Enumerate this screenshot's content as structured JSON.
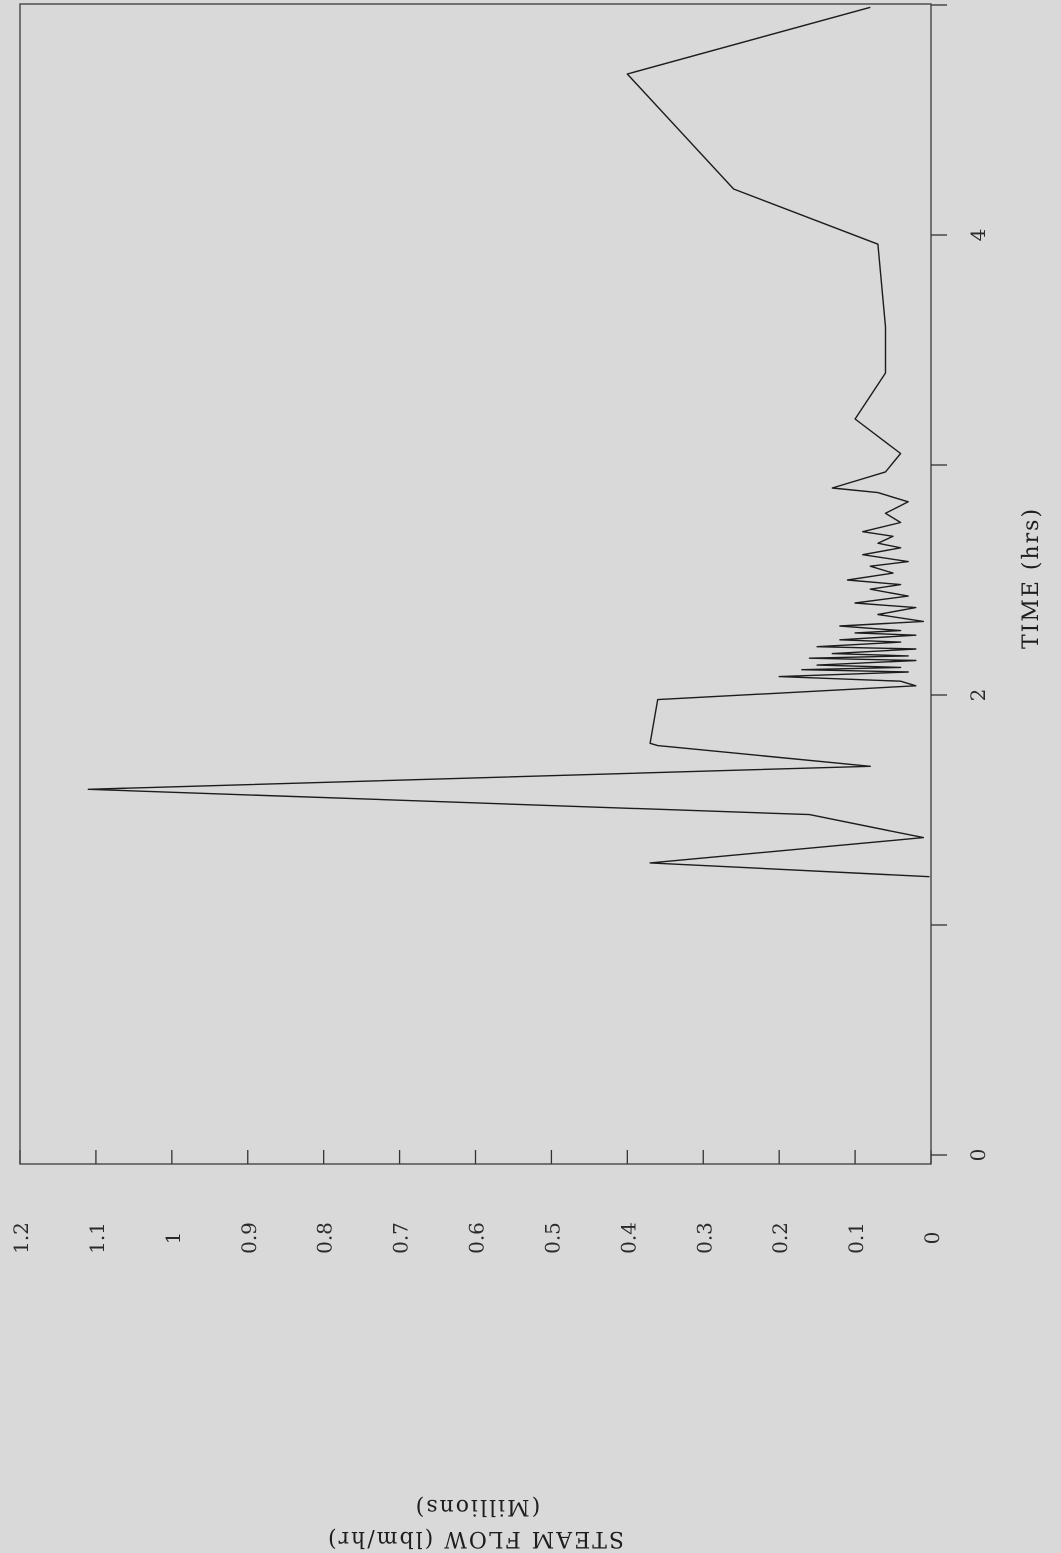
{
  "chart_data": {
    "type": "line",
    "xlabel": "TIME (hrs)",
    "ylabel": "STEAM FLOW (lbm/hr)",
    "ylabel_units": "(Millions)",
    "xlim": [
      0,
      5
    ],
    "ylim": [
      0,
      1.2
    ],
    "x_ticks": [
      0,
      1,
      2,
      3,
      4,
      5
    ],
    "x_tick_labels": [
      "0",
      "",
      "2",
      "",
      "4",
      ""
    ],
    "y_ticks": [
      0,
      0.1,
      0.2,
      0.3,
      0.4,
      0.5,
      0.6,
      0.7,
      0.8,
      0.9,
      1.0,
      1.1,
      1.2
    ],
    "y_tick_labels": [
      "0",
      "0.1",
      "0.2",
      "0.3",
      "0.4",
      "0.5",
      "0.6",
      "0.7",
      "0.8",
      "0.9",
      "1",
      "1.1",
      "1.2"
    ],
    "grid": false,
    "orientation": "rotated 90 degrees (time axis vertical, flow axis horizontal, increasing to the left)",
    "series": [
      {
        "x": [
          1.21,
          1.27,
          1.38,
          1.48,
          1.59,
          1.69,
          1.78,
          1.79,
          1.98,
          2.04,
          2.06,
          2.08,
          2.1,
          2.11,
          2.12,
          2.13,
          2.15,
          2.16,
          2.17,
          2.18,
          2.2,
          2.21,
          2.23,
          2.24,
          2.26,
          2.27,
          2.28,
          2.3,
          2.32,
          2.35,
          2.38,
          2.4,
          2.43,
          2.46,
          2.48,
          2.5,
          2.53,
          2.56,
          2.58,
          2.61,
          2.64,
          2.66,
          2.69,
          2.71,
          2.75,
          2.79,
          2.84,
          2.88,
          2.9,
          2.97,
          3.05,
          3.2,
          3.4,
          3.6,
          3.96,
          4.2,
          4.7,
          4.99
        ],
        "y": [
          0.002,
          0.37,
          0.01,
          0.16,
          1.11,
          0.08,
          0.36,
          0.37,
          0.36,
          0.02,
          0.04,
          0.2,
          0.03,
          0.17,
          0.04,
          0.15,
          0.02,
          0.16,
          0.03,
          0.13,
          0.02,
          0.15,
          0.04,
          0.12,
          0.02,
          0.1,
          0.04,
          0.12,
          0.01,
          0.07,
          0.02,
          0.1,
          0.03,
          0.08,
          0.04,
          0.11,
          0.05,
          0.08,
          0.03,
          0.09,
          0.04,
          0.07,
          0.05,
          0.09,
          0.04,
          0.06,
          0.03,
          0.07,
          0.13,
          0.06,
          0.04,
          0.1,
          0.06,
          0.06,
          0.07,
          0.26,
          0.4,
          0.08
        ]
      }
    ]
  }
}
